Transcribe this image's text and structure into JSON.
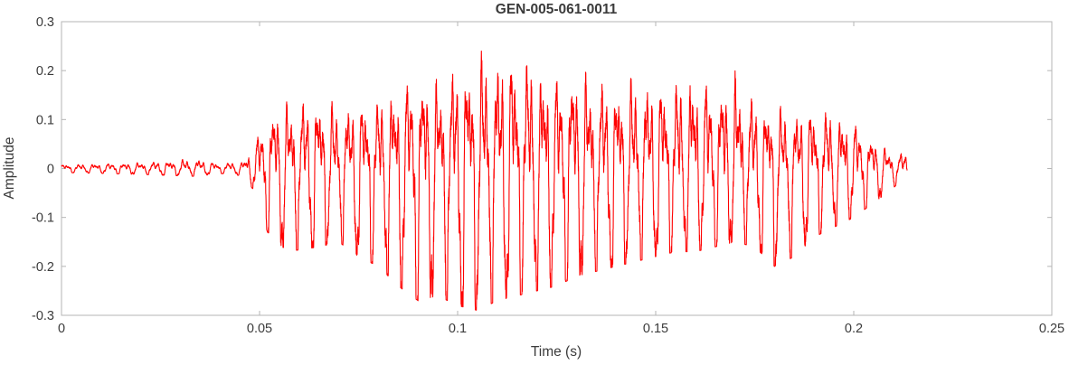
{
  "chart_data": {
    "type": "line",
    "title": "GEN-005-061-0011",
    "xlabel": "Time (s)",
    "ylabel": "Amplitude",
    "xlim": [
      0,
      0.25
    ],
    "ylim": [
      -0.3,
      0.3
    ],
    "xticks": [
      0,
      0.05,
      0.1,
      0.15,
      0.2,
      0.25
    ],
    "xtick_labels": [
      "0",
      "0.05",
      "0.1",
      "0.15",
      "0.2",
      "0.25"
    ],
    "yticks": [
      -0.3,
      -0.2,
      -0.1,
      0,
      0.1,
      0.2,
      0.3
    ],
    "ytick_labels": [
      "-0.3",
      "-0.2",
      "-0.1",
      "0",
      "0.1",
      "0.2",
      "0.3"
    ],
    "grid": false,
    "legend": null,
    "description": "Speech-like audio waveform: near-silent noise floor (about ±0.01) from 0 to ~0.048 s, voiced burst from ~0.049 s to ~0.213 s, maximum amplitude ~+0.25 near t=0.115 s, minimum ~-0.29 near t=0.105 s, decaying to silence by ~0.213 s.",
    "style": {
      "line_color": "#FF0000",
      "axis_color": "#b5b5b5",
      "text_color": "#3b3b3b",
      "background": "#ffffff"
    },
    "series": [
      {
        "name": "waveform",
        "color": "#FF0000",
        "t_start": 0,
        "t_end": 0.2135,
        "f0": 265,
        "peak_positive": {
          "t": 0.115,
          "value": 0.25
        },
        "peak_negative": {
          "t": 0.105,
          "value": -0.29
        },
        "envelope": [
          [
            0.0,
            0.008,
            -0.008
          ],
          [
            0.02,
            0.012,
            -0.012
          ],
          [
            0.034,
            0.02,
            -0.016
          ],
          [
            0.04,
            0.01,
            -0.01
          ],
          [
            0.046,
            0.015,
            -0.015
          ],
          [
            0.049,
            0.06,
            -0.05
          ],
          [
            0.052,
            0.12,
            -0.13
          ],
          [
            0.057,
            0.14,
            -0.17
          ],
          [
            0.065,
            0.15,
            -0.16
          ],
          [
            0.07,
            0.13,
            -0.15
          ],
          [
            0.075,
            0.14,
            -0.18
          ],
          [
            0.08,
            0.15,
            -0.2
          ],
          [
            0.085,
            0.17,
            -0.24
          ],
          [
            0.09,
            0.21,
            -0.27
          ],
          [
            0.095,
            0.18,
            -0.26
          ],
          [
            0.1,
            0.22,
            -0.28
          ],
          [
            0.105,
            0.24,
            -0.29
          ],
          [
            0.11,
            0.24,
            -0.27
          ],
          [
            0.115,
            0.25,
            -0.26
          ],
          [
            0.12,
            0.22,
            -0.25
          ],
          [
            0.125,
            0.2,
            -0.24
          ],
          [
            0.13,
            0.21,
            -0.22
          ],
          [
            0.135,
            0.19,
            -0.21
          ],
          [
            0.14,
            0.18,
            -0.2
          ],
          [
            0.145,
            0.19,
            -0.19
          ],
          [
            0.15,
            0.18,
            -0.18
          ],
          [
            0.155,
            0.19,
            -0.17
          ],
          [
            0.16,
            0.2,
            -0.17
          ],
          [
            0.165,
            0.18,
            -0.16
          ],
          [
            0.17,
            0.2,
            -0.15
          ],
          [
            0.175,
            0.15,
            -0.16
          ],
          [
            0.18,
            0.13,
            -0.2
          ],
          [
            0.185,
            0.12,
            -0.18
          ],
          [
            0.19,
            0.13,
            -0.14
          ],
          [
            0.195,
            0.12,
            -0.12
          ],
          [
            0.2,
            0.1,
            -0.1
          ],
          [
            0.205,
            0.06,
            -0.07
          ],
          [
            0.21,
            0.03,
            -0.04
          ],
          [
            0.2135,
            0.035,
            -0.01
          ]
        ]
      }
    ]
  }
}
